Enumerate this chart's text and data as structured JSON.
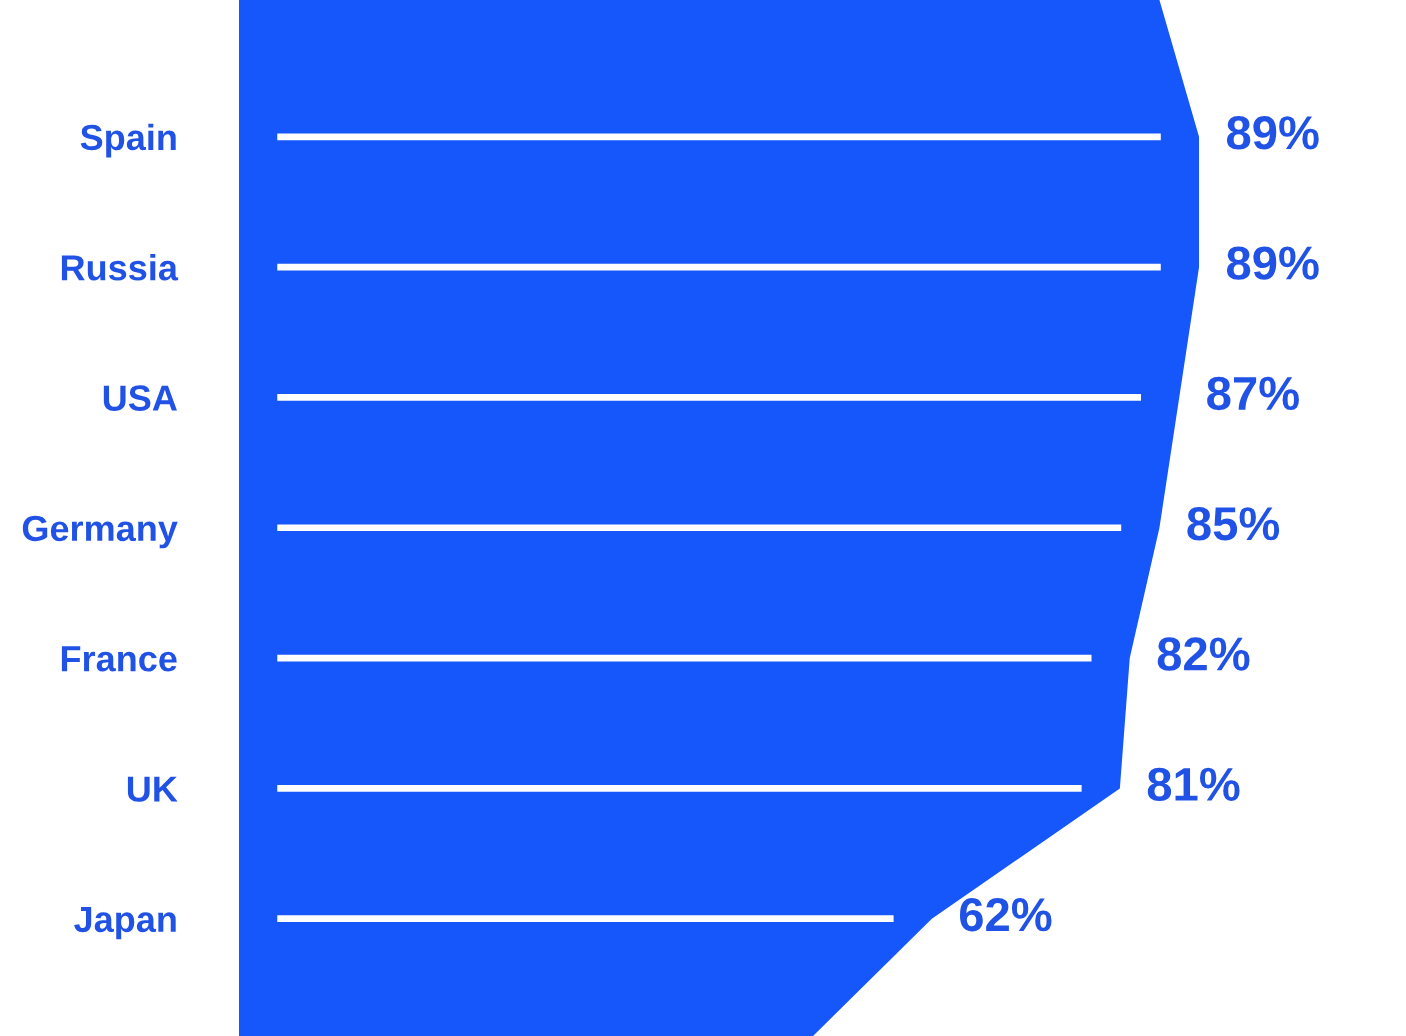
{
  "chart_data": {
    "type": "bar",
    "orientation": "horizontal",
    "categories": [
      "Spain",
      "Russia",
      "USA",
      "Germany",
      "France",
      "UK",
      "Japan"
    ],
    "values": [
      89,
      89,
      87,
      85,
      82,
      81,
      62
    ],
    "color": "#ffffff",
    "value_labels": [
      "89%",
      "89%",
      "87%",
      "85%",
      "82%",
      "81%",
      "62%"
    ],
    "grid": false,
    "legend": false
  }
}
